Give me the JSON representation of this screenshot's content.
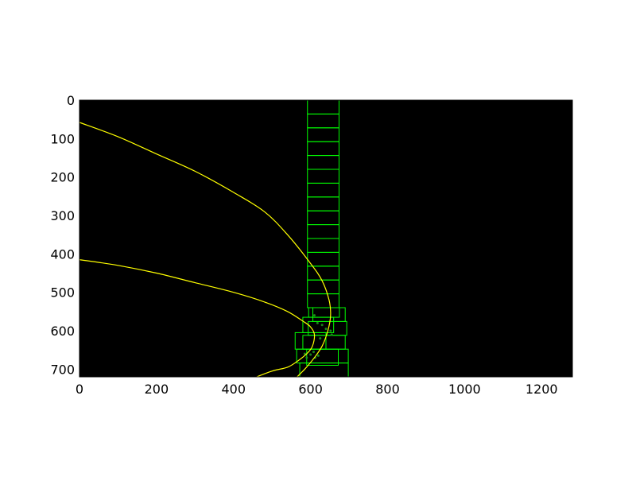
{
  "chart_data": {
    "type": "image",
    "title": "",
    "xlabel": "",
    "ylabel": "",
    "xlim": [
      0,
      1280
    ],
    "ylim": [
      720,
      0
    ],
    "x_ticks": [
      "0",
      "200",
      "400",
      "600",
      "800",
      "1000",
      "1200"
    ],
    "y_ticks": [
      "0",
      "100",
      "200",
      "300",
      "400",
      "500",
      "600",
      "700"
    ],
    "background_color": "#000000",
    "window_color": "#00ff00",
    "curve_color": "#ffff00",
    "grid": false,
    "window_columns": [
      {
        "name": "left-window-column",
        "windows": [
          {
            "x1": 590,
            "x2": 672,
            "y1": 648,
            "y2": 690
          },
          {
            "x1": 560,
            "x2": 640,
            "y1": 605,
            "y2": 648
          },
          {
            "x1": 580,
            "x2": 660,
            "y1": 565,
            "y2": 605
          },
          {
            "x1": 595,
            "x2": 675,
            "y1": 540,
            "y2": 565
          }
        ]
      },
      {
        "name": "right-window-column",
        "windows": [
          {
            "x1": 592,
            "x2": 674,
            "y1": 0,
            "y2": 36
          },
          {
            "x1": 592,
            "x2": 674,
            "y1": 36,
            "y2": 72
          },
          {
            "x1": 592,
            "x2": 674,
            "y1": 72,
            "y2": 108
          },
          {
            "x1": 592,
            "x2": 674,
            "y1": 108,
            "y2": 144
          },
          {
            "x1": 592,
            "x2": 674,
            "y1": 144,
            "y2": 180
          },
          {
            "x1": 592,
            "x2": 674,
            "y1": 180,
            "y2": 216
          },
          {
            "x1": 592,
            "x2": 674,
            "y1": 216,
            "y2": 252
          },
          {
            "x1": 592,
            "x2": 674,
            "y1": 252,
            "y2": 288
          },
          {
            "x1": 592,
            "x2": 674,
            "y1": 288,
            "y2": 324
          },
          {
            "x1": 592,
            "x2": 674,
            "y1": 324,
            "y2": 360
          },
          {
            "x1": 592,
            "x2": 674,
            "y1": 360,
            "y2": 396
          },
          {
            "x1": 592,
            "x2": 674,
            "y1": 396,
            "y2": 432
          },
          {
            "x1": 592,
            "x2": 674,
            "y1": 432,
            "y2": 468
          },
          {
            "x1": 592,
            "x2": 674,
            "y1": 468,
            "y2": 504
          },
          {
            "x1": 592,
            "x2": 674,
            "y1": 504,
            "y2": 540
          },
          {
            "x1": 606,
            "x2": 690,
            "y1": 540,
            "y2": 576
          },
          {
            "x1": 594,
            "x2": 694,
            "y1": 576,
            "y2": 612
          },
          {
            "x1": 580,
            "x2": 690,
            "y1": 612,
            "y2": 648
          },
          {
            "x1": 564,
            "x2": 698,
            "y1": 648,
            "y2": 684
          },
          {
            "x1": 572,
            "x2": 698,
            "y1": 684,
            "y2": 720
          }
        ]
      }
    ],
    "lane_points": [
      {
        "x": 590,
        "y": 670
      },
      {
        "x": 600,
        "y": 662
      },
      {
        "x": 612,
        "y": 670
      },
      {
        "x": 585,
        "y": 660
      },
      {
        "x": 620,
        "y": 665
      },
      {
        "x": 608,
        "y": 655
      },
      {
        "x": 625,
        "y": 620
      },
      {
        "x": 655,
        "y": 610
      },
      {
        "x": 652,
        "y": 600
      },
      {
        "x": 618,
        "y": 580
      },
      {
        "x": 630,
        "y": 585
      },
      {
        "x": 640,
        "y": 595
      },
      {
        "x": 610,
        "y": 560
      }
    ],
    "series": [
      {
        "x": [
          0,
          100,
          200,
          300,
          400,
          480,
          540,
          580,
          600,
          610,
          605,
          590,
          565,
          540,
          500,
          460
        ],
        "y": [
          415,
          430,
          450,
          475,
          500,
          525,
          550,
          575,
          590,
          610,
          640,
          660,
          680,
          695,
          705,
          720
        ]
      },
      {
        "x": [
          0,
          100,
          200,
          300,
          400,
          480,
          540,
          600,
          630,
          648,
          652,
          645,
          630,
          610,
          585,
          565
        ],
        "y": [
          58,
          95,
          140,
          185,
          240,
          290,
          350,
          425,
          470,
          520,
          560,
          600,
          640,
          670,
          700,
          720
        ]
      }
    ]
  }
}
